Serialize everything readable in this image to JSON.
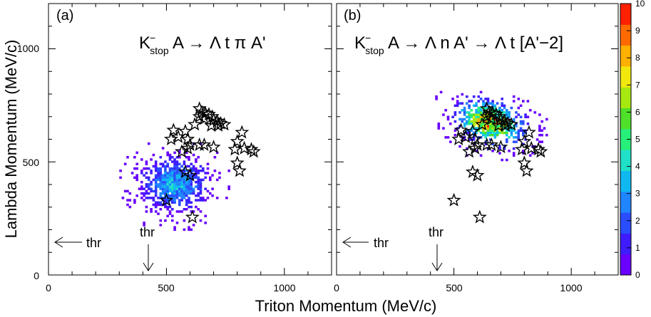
{
  "figure": {
    "xlabel": "Triton Momentum (MeV/c)",
    "ylabel": "Lambda Momentum (MeV/c)"
  },
  "colorbar": {
    "min": 0,
    "max": 10,
    "ticks": [
      "0",
      "1",
      "2",
      "3",
      "4",
      "5",
      "6",
      "7",
      "8",
      "9",
      "10"
    ],
    "colors": [
      "#6a00ff",
      "#3f1cff",
      "#2a4dff",
      "#1f86ff",
      "#10b8f2",
      "#20e0c8",
      "#27f07a",
      "#4fe02a",
      "#a7e810",
      "#f3e80e",
      "#ffb000",
      "#ff6a00",
      "#ff2000"
    ]
  },
  "chart_data": [
    {
      "type": "heatmap",
      "panel_label": "(a)",
      "title": "K stop A → Λ t π A'",
      "title_parts": {
        "k": "K",
        "sup": "−",
        "sub": "stop",
        "rest": " A → Λ t π A'"
      },
      "xlim": [
        0,
        1200
      ],
      "ylim": [
        0,
        1200
      ],
      "x_ticks": [
        "0",
        "500",
        "1000"
      ],
      "y_ticks": [
        "0",
        "500",
        "1000"
      ],
      "threshold": {
        "label": "thr",
        "x": 425,
        "y": 148
      },
      "heat_cluster": {
        "center_x": 530,
        "center_y": 400,
        "spread_x": 80,
        "spread_y": 70,
        "peak": 4
      },
      "stars": [
        [
          640,
          735
        ],
        [
          650,
          720
        ],
        [
          665,
          715
        ],
        [
          680,
          710
        ],
        [
          695,
          700
        ],
        [
          660,
          690
        ],
        [
          700,
          685
        ],
        [
          715,
          680
        ],
        [
          730,
          670
        ],
        [
          720,
          660
        ],
        [
          745,
          665
        ],
        [
          690,
          660
        ],
        [
          640,
          700
        ],
        [
          620,
          665
        ],
        [
          580,
          635
        ],
        [
          530,
          640
        ],
        [
          520,
          600
        ],
        [
          550,
          610
        ],
        [
          590,
          600
        ],
        [
          600,
          575
        ],
        [
          640,
          575
        ],
        [
          660,
          575
        ],
        [
          590,
          560
        ],
        [
          565,
          545
        ],
        [
          700,
          565
        ],
        [
          800,
          590
        ],
        [
          820,
          630
        ],
        [
          830,
          560
        ],
        [
          860,
          555
        ],
        [
          870,
          545
        ],
        [
          790,
          555
        ],
        [
          800,
          495
        ],
        [
          810,
          460
        ],
        [
          580,
          455
        ],
        [
          600,
          440
        ],
        [
          500,
          330
        ],
        [
          610,
          255
        ]
      ]
    },
    {
      "type": "heatmap",
      "panel_label": "(b)",
      "title": "K stop A → Λ n A' → Λ t [A'−2]",
      "title_parts": {
        "k": "K",
        "sup": "−",
        "sub": "stop",
        "rest": " A → Λ n A' → Λ t [A'−2]"
      },
      "xlim": [
        0,
        1200
      ],
      "ylim": [
        0,
        1200
      ],
      "x_ticks": [
        "0",
        "500",
        "1000"
      ],
      "y_ticks": [
        "0",
        "500",
        "1000"
      ],
      "threshold": {
        "label": "thr",
        "x": 425,
        "y": 148
      },
      "heat_cluster": {
        "center_x": 650,
        "center_y": 670,
        "spread_x": 80,
        "spread_y": 55,
        "peak": 9
      },
      "stars": [
        [
          640,
          735
        ],
        [
          650,
          720
        ],
        [
          665,
          715
        ],
        [
          680,
          710
        ],
        [
          695,
          700
        ],
        [
          660,
          690
        ],
        [
          700,
          685
        ],
        [
          715,
          680
        ],
        [
          730,
          670
        ],
        [
          720,
          660
        ],
        [
          745,
          665
        ],
        [
          690,
          660
        ],
        [
          640,
          700
        ],
        [
          620,
          665
        ],
        [
          580,
          635
        ],
        [
          530,
          640
        ],
        [
          520,
          600
        ],
        [
          550,
          610
        ],
        [
          590,
          600
        ],
        [
          600,
          575
        ],
        [
          640,
          575
        ],
        [
          660,
          575
        ],
        [
          590,
          560
        ],
        [
          565,
          545
        ],
        [
          700,
          565
        ],
        [
          800,
          590
        ],
        [
          820,
          630
        ],
        [
          830,
          560
        ],
        [
          860,
          555
        ],
        [
          870,
          545
        ],
        [
          790,
          555
        ],
        [
          800,
          495
        ],
        [
          810,
          460
        ],
        [
          580,
          455
        ],
        [
          600,
          440
        ],
        [
          500,
          330
        ],
        [
          610,
          255
        ]
      ]
    }
  ]
}
